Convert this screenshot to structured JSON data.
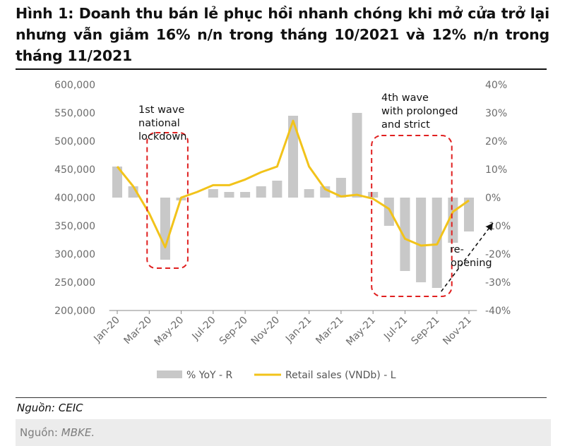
{
  "figure": {
    "title": "Hình 1: Doanh thu bán lẻ phục hồi nhanh chóng khi mở cửa trở lại nhưng vẫn giảm 16% n/n trong tháng 10/2021 và 12% n/n trong tháng 11/2021",
    "source_primary": "Nguồn: CEIC",
    "source_secondary_label": "Nguồn:",
    "source_secondary_value": "MBKE."
  },
  "colors": {
    "bar": "#c8c8c8",
    "line": "#f2c31a",
    "annotation_box": "#e02020",
    "arrow": "#111111"
  },
  "chart_data": {
    "type": "bar",
    "categories": [
      "Jan-20",
      "Feb-20",
      "Mar-20",
      "Apr-20",
      "May-20",
      "Jun-20",
      "Jul-20",
      "Aug-20",
      "Sep-20",
      "Oct-20",
      "Nov-20",
      "Dec-20",
      "Jan-21",
      "Feb-21",
      "Mar-21",
      "Apr-21",
      "May-21",
      "Jun-21",
      "Jul-21",
      "Aug-21",
      "Sep-21",
      "Oct-21",
      "Nov-21"
    ],
    "x_tick_labels": [
      "Jan-20",
      "Mar-20",
      "May-20",
      "Jul-20",
      "Sep-20",
      "Nov-20",
      "Jan-21",
      "Mar-21",
      "May-21",
      "Jul-21",
      "Sep-21",
      "Nov-21"
    ],
    "series": [
      {
        "name": "% YoY - R",
        "type": "bar",
        "axis": "right",
        "values": [
          11,
          4,
          0,
          -22,
          -1,
          0,
          3,
          2,
          2,
          4,
          6,
          29,
          3,
          4,
          7,
          30,
          2,
          -10,
          -26,
          -30,
          -32,
          -16,
          -12
        ]
      },
      {
        "name": "Retail sales (VNDb) - L",
        "type": "line",
        "axis": "left",
        "values": [
          455000,
          420000,
          372000,
          312000,
          400000,
          410000,
          422000,
          422000,
          432000,
          445000,
          455000,
          536000,
          455000,
          415000,
          402000,
          405000,
          398000,
          380000,
          327000,
          315000,
          317000,
          375000,
          395000
        ]
      }
    ],
    "y_left": {
      "min": 200000,
      "max": 600000,
      "ticks": [
        "200,000",
        "250,000",
        "300,000",
        "350,000",
        "400,000",
        "450,000",
        "500,000",
        "550,000",
        "600,000"
      ]
    },
    "y_right": {
      "min": -40,
      "max": 40,
      "ticks": [
        "-40%",
        "-30%",
        "-20%",
        "-10%",
        "0%",
        "10%",
        "20%",
        "30%",
        "40%"
      ]
    },
    "annotations": [
      {
        "lines": [
          "1st wave",
          "national",
          "lockdown"
        ],
        "box_from": "Mar-20",
        "box_to": "Apr-20"
      },
      {
        "lines": [
          "4th wave",
          "with prolonged",
          "and strict"
        ],
        "box_from": "May-21",
        "box_to": "Sep-21"
      },
      {
        "lines": [
          "re-",
          "opening"
        ],
        "arrow_from": "Sep-21",
        "arrow_to": "Nov-21"
      }
    ],
    "legend_position": "bottom",
    "grid": false
  }
}
